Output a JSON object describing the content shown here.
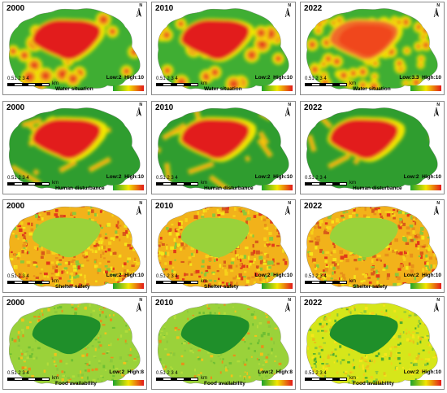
{
  "colors": {
    "ramp_low": "#1fa22b",
    "ramp_mid": "#f2e600",
    "ramp_high": "#e21a1a",
    "lake_food": "#1f8f2a",
    "lake_shelter": "#9ad23a"
  },
  "scale": {
    "ticks": "0.51  2   3   4",
    "unit": "km"
  },
  "north": {
    "letter": "N"
  },
  "rows": [
    {
      "title": "Water situation",
      "panels": [
        {
          "year": "2000",
          "low": "Low:2",
          "high": "High:10",
          "style": "water"
        },
        {
          "year": "2010",
          "low": "Low:2",
          "high": "High:10",
          "style": "water"
        },
        {
          "year": "2022",
          "low": "Low:3.3",
          "high": "High:10",
          "style": "water22"
        }
      ]
    },
    {
      "title": "Human disturbance",
      "panels": [
        {
          "year": "2000",
          "low": "Low:2",
          "high": "High:10",
          "style": "human"
        },
        {
          "year": "2010",
          "low": "Low:2",
          "high": "High:10",
          "style": "human"
        },
        {
          "year": "2022",
          "low": "Low:2",
          "high": "High:10",
          "style": "human22"
        }
      ]
    },
    {
      "title": "Shelter safety",
      "panels": [
        {
          "year": "2000",
          "low": "Low:2",
          "high": "High:10",
          "style": "shelter"
        },
        {
          "year": "2010",
          "low": "Low:2",
          "high": "High:10",
          "style": "shelter"
        },
        {
          "year": "2022",
          "low": "Low:2",
          "high": "High:10",
          "style": "shelter"
        }
      ]
    },
    {
      "title": "Food availability",
      "panels": [
        {
          "year": "2000",
          "low": "Low:2",
          "high": "High:8",
          "style": "food"
        },
        {
          "year": "2010",
          "low": "Low:2",
          "high": "High:8",
          "style": "food"
        },
        {
          "year": "2022",
          "low": "Low:2",
          "high": "High:10",
          "style": "food22"
        }
      ]
    }
  ]
}
